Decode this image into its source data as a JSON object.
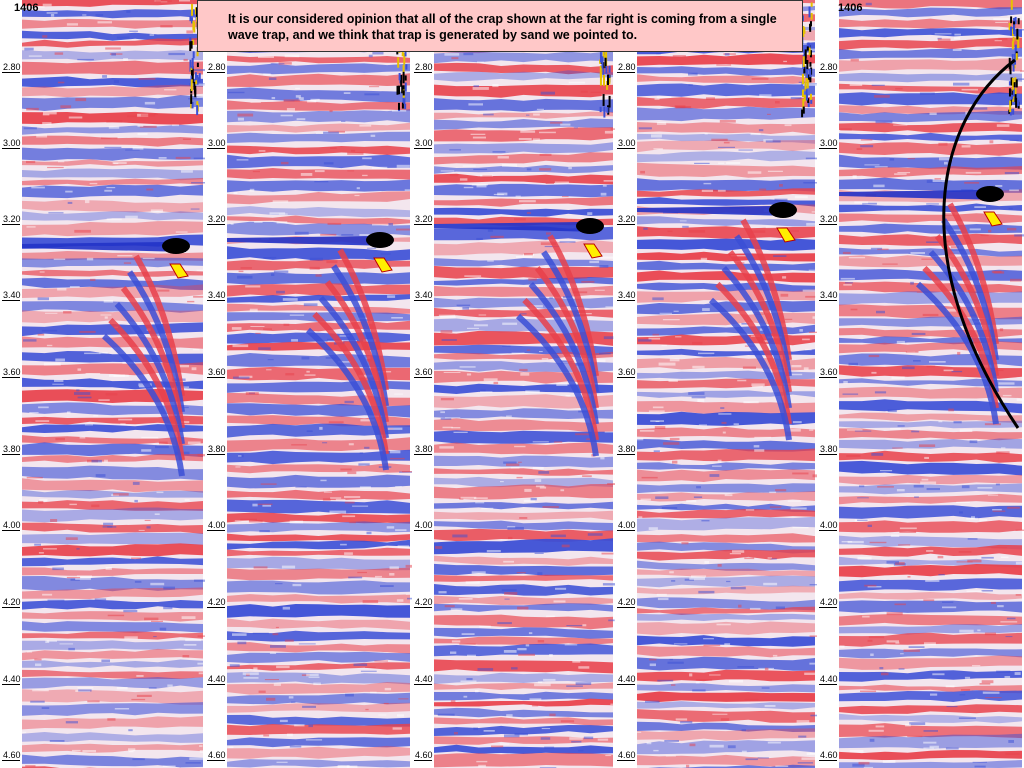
{
  "callout": {
    "text": "It is our considered opinion that all of the crap shown at the far right is coming from a single wave trap, and we think that trap is generated by sand we pointed to."
  },
  "panel_titles": [
    "1406",
    "1406"
  ],
  "time_ticks": [
    "2.80",
    "3.00",
    "3.20",
    "3.40",
    "3.60",
    "3.80",
    "4.00",
    "4.20",
    "4.40",
    "4.60"
  ],
  "colors": {
    "positive": "#e8414b",
    "negative": "#3b4fd6",
    "bright_anomaly": "#ffee00",
    "dark_anomaly": "#000000",
    "callout_fill": "#ffc8c8"
  }
}
